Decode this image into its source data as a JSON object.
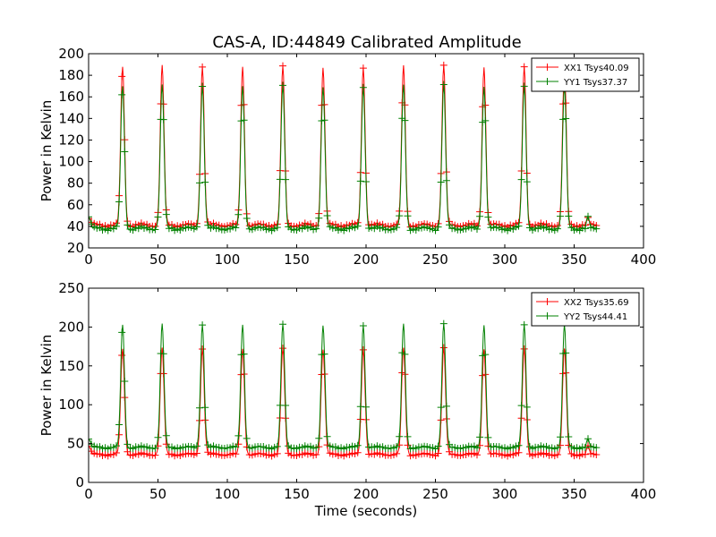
{
  "title": "CAS-A, ID:44849 Calibrated Amplitude",
  "colors": {
    "xx": "#ff0000",
    "yy": "#008000"
  },
  "chart_data": [
    {
      "type": "line",
      "marker": "+",
      "ylabel": "Power in Kelvin",
      "xlabel": "",
      "xlim": [
        0,
        400
      ],
      "ylim": [
        20,
        200
      ],
      "xticks": [
        "0",
        "50",
        "100",
        "150",
        "200",
        "250",
        "300",
        "350",
        "400"
      ],
      "yticks": [
        "20",
        "40",
        "60",
        "80",
        "100",
        "120",
        "140",
        "160",
        "180",
        "200"
      ],
      "legend_position": "top-right",
      "peak_times": [
        24.5,
        53,
        82,
        111,
        140,
        169,
        198,
        227,
        256,
        285,
        314,
        343
      ],
      "series": [
        {
          "name": "XX1 Tsys40.09",
          "color": "#ff0000",
          "baseline": 41,
          "peak": 188,
          "end_bump": 48
        },
        {
          "name": "YY1 Tsys37.37",
          "color": "#008000",
          "baseline": 38,
          "peak": 170,
          "end_bump": 50
        }
      ],
      "x_end": 366
    },
    {
      "type": "line",
      "marker": "+",
      "ylabel": "Power in Kelvin",
      "xlabel": "Time (seconds)",
      "xlim": [
        0,
        400
      ],
      "ylim": [
        0,
        250
      ],
      "xticks": [
        "0",
        "50",
        "100",
        "150",
        "200",
        "250",
        "300",
        "350",
        "400"
      ],
      "yticks": [
        "0",
        "50",
        "100",
        "150",
        "200",
        "250"
      ],
      "legend_position": "top-right",
      "peak_times": [
        24.5,
        53,
        82,
        111,
        140,
        169,
        198,
        227,
        256,
        285,
        314,
        343
      ],
      "series": [
        {
          "name": "XX2 Tsys35.69",
          "color": "#ff0000",
          "baseline": 36,
          "peak": 172,
          "end_bump": 48
        },
        {
          "name": "YY2 Tsys44.41",
          "color": "#008000",
          "baseline": 45,
          "peak": 203,
          "end_bump": 57
        }
      ],
      "x_end": 366
    }
  ]
}
